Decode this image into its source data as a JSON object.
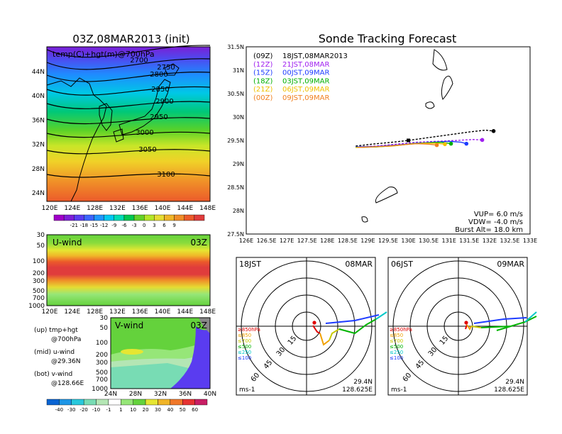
{
  "colors": {
    "bg": "#ffffff",
    "axis": "#000000",
    "grid": "#aaaaaa",
    "track_09z": "#000000",
    "track_12z": "#a020f0",
    "track_15z": "#1e3cff",
    "track_18z": "#00b000",
    "track_21z": "#f0c000",
    "track_00z": "#f08020"
  },
  "init_panel": {
    "title": "03Z,08MAR2013 (init)",
    "subtitle": "temp(C)+hgt(m)@700hPa",
    "lat_labels": [
      "44N",
      "40N",
      "36N",
      "32N",
      "28N",
      "24N"
    ],
    "lon_labels": [
      "120E",
      "124E",
      "128E",
      "132E",
      "136E",
      "140E",
      "144E",
      "148E"
    ],
    "contour_labels": [
      "2700",
      "2750",
      "2800",
      "2850",
      "2900",
      "2950",
      "3000",
      "3050",
      "3100"
    ],
    "colorbar_labels": [
      "-21",
      "-18",
      "-15",
      "-12",
      "-9",
      "-6",
      "-3",
      "0",
      "3",
      "6",
      "9"
    ],
    "colorbar_colors": [
      "#a000c8",
      "#7e1ed8",
      "#5a3cf0",
      "#3c64ff",
      "#1e96ff",
      "#00c8f0",
      "#00dcb4",
      "#00c850",
      "#64d228",
      "#b4e628",
      "#e6dc32",
      "#f0b428",
      "#f08c28",
      "#ec5a2a",
      "#e03c3c"
    ]
  },
  "uwind_panel": {
    "title": "U-wind",
    "time": "03Z",
    "levels": [
      "30",
      "50",
      "100",
      "200",
      "300",
      "500",
      "700",
      "1000"
    ],
    "lon_labels": [
      "120E",
      "124E",
      "128E",
      "132E",
      "136E",
      "140E",
      "144E",
      "148E"
    ]
  },
  "vwind_panel": {
    "title": "V-wind",
    "time": "03Z",
    "levels": [
      "30",
      "50",
      "100",
      "200",
      "300",
      "500",
      "700",
      "1000"
    ],
    "lat_labels": [
      "24N",
      "28N",
      "32N",
      "36N",
      "40N"
    ],
    "colorbar_labels": [
      "-40",
      "-30",
      "-20",
      "-10",
      "-1",
      "1",
      "10",
      "20",
      "30",
      "40",
      "50",
      "60"
    ],
    "colorbar_colors": [
      "#0a64d2",
      "#1e96e6",
      "#28c8dc",
      "#78dcb4",
      "#b4e6b4",
      "#ffffff",
      "#96e678",
      "#64d23c",
      "#e6e632",
      "#f0b428",
      "#f0782a",
      "#e63232",
      "#c81e64"
    ]
  },
  "notes": [
    {
      "label": "(up) tmp+hgt",
      "sub": "@700hPa"
    },
    {
      "label": "(mid) u-wind",
      "sub": "@29.36N"
    },
    {
      "label": "(bot) v-wind",
      "sub": "@128.66E"
    }
  ],
  "tracking": {
    "title": "Sonde Tracking Forecast",
    "legend": [
      {
        "code": "(09Z)",
        "text": "18JST,08MAR2013",
        "color": "#000000"
      },
      {
        "code": "(12Z)",
        "text": "21JST,08MAR",
        "color": "#a020f0"
      },
      {
        "code": "(15Z)",
        "text": "00JST,09MAR",
        "color": "#1e3cff"
      },
      {
        "code": "(18Z)",
        "text": "03JST,09MAR",
        "color": "#00b000"
      },
      {
        "code": "(21Z)",
        "text": "06JST,09MAR",
        "color": "#f0c000"
      },
      {
        "code": "(00Z)",
        "text": "09JST,09MAR",
        "color": "#f08020"
      }
    ],
    "params": [
      "VUP= 6.0 m/s",
      "VDW= -4.0 m/s",
      "Burst Alt= 18.0 km"
    ],
    "x_labels": [
      "126E",
      "126.5E",
      "127E",
      "127.5E",
      "128E",
      "128.5E",
      "129E",
      "129.5E",
      "130E",
      "130.5E",
      "131E",
      "131.5E",
      "132E",
      "132.5E",
      "133E"
    ],
    "y_labels": [
      "31.5N",
      "31N",
      "30.5N",
      "30N",
      "29.5N",
      "29N",
      "28.5N",
      "28N",
      "27.5N"
    ]
  },
  "hodographs": [
    {
      "time": "18JST",
      "date": "08MAR",
      "lat": "29.4N",
      "lon": "128.625E",
      "unit": "ms-1",
      "rings": [
        "15",
        "30",
        "45",
        "60"
      ],
      "legend": [
        {
          "text": "≥850hPa",
          "color": "#e00000"
        },
        {
          "text": "≤850",
          "color": "#f0a000"
        },
        {
          "text": "≤700",
          "color": "#c8c800"
        },
        {
          "text": "≤500",
          "color": "#00b400"
        },
        {
          "text": "≤250",
          "color": "#00c8c8"
        },
        {
          "text": "≤100",
          "color": "#1e3cff"
        }
      ]
    },
    {
      "time": "06JST",
      "date": "09MAR",
      "lat": "29.4N",
      "lon": "128.625E",
      "unit": "ms-1",
      "rings": [
        "15",
        "30",
        "45",
        "60"
      ],
      "legend": [
        {
          "text": "≥850hPa",
          "color": "#e00000"
        },
        {
          "text": "≤850",
          "color": "#f0a000"
        },
        {
          "text": "≤700",
          "color": "#c8c800"
        },
        {
          "text": "≤500",
          "color": "#00b400"
        },
        {
          "text": "≤250",
          "color": "#00c8c8"
        },
        {
          "text": "≤100",
          "color": "#1e3cff"
        }
      ]
    }
  ],
  "chart_data": {
    "type": "line",
    "title": "Sonde Tracking Forecast",
    "xlabel": "",
    "ylabel": "",
    "xlim": [
      126,
      133
    ],
    "ylim": [
      27.5,
      31.5
    ],
    "series": [
      {
        "name": "18JST,08MAR2013",
        "x": [
          128.7,
          129.1,
          129.6,
          130.0,
          130.5,
          131.0,
          131.5,
          131.9,
          132.1
        ],
        "y": [
          29.38,
          29.42,
          29.46,
          29.5,
          29.56,
          29.62,
          29.68,
          29.72,
          29.7
        ]
      },
      {
        "name": "21JST,08MAR",
        "x": [
          128.7,
          129.2,
          129.7,
          130.2,
          130.7,
          131.2,
          131.6,
          131.82
        ],
        "y": [
          29.36,
          29.38,
          29.42,
          29.46,
          29.48,
          29.5,
          29.52,
          29.51
        ]
      },
      {
        "name": "00JST,09MAR",
        "x": [
          128.7,
          129.2,
          129.7,
          130.2,
          130.6,
          131.0,
          131.3,
          131.43
        ],
        "y": [
          29.36,
          29.37,
          29.4,
          29.44,
          29.46,
          29.48,
          29.46,
          29.43
        ]
      },
      {
        "name": "03JST,09MAR",
        "x": [
          128.7,
          129.2,
          129.7,
          130.1,
          130.5,
          130.8,
          131.05
        ],
        "y": [
          29.35,
          29.36,
          29.39,
          29.43,
          29.45,
          29.46,
          29.43
        ]
      },
      {
        "name": "06JST,09MAR",
        "x": [
          128.7,
          129.1,
          129.6,
          130.0,
          130.4,
          130.7,
          130.9
        ],
        "y": [
          29.35,
          29.36,
          29.38,
          29.42,
          29.44,
          29.44,
          29.42
        ]
      },
      {
        "name": "09JST,09MAR",
        "x": [
          128.75,
          129.1,
          129.5,
          129.9,
          130.2,
          130.5,
          130.7
        ],
        "y": [
          29.35,
          29.36,
          29.38,
          29.41,
          29.43,
          29.42,
          29.4
        ]
      }
    ]
  }
}
